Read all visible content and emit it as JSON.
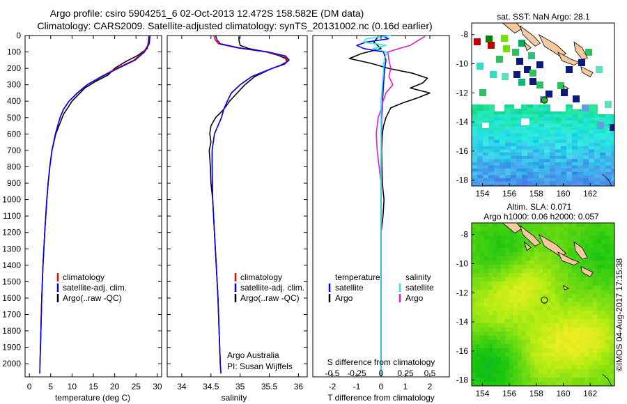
{
  "header": {
    "title_line1": "Argo profile: csiro 5904251_6 02-Oct-2013 12.472S 158.582E (DM data)",
    "title_line2": "Climatology: CARS2009. Satellite-adjusted climatology: synTS_20131002.nc (0.16d earlier)"
  },
  "credit": "Argo Australia",
  "pi_label": "PI: Susan Wijffels",
  "stamp": "©IMOS 04-Aug-2017 17:15:38",
  "colors": {
    "climatology": "#ff0000",
    "satellite": "#0000ff",
    "argo": "#000000",
    "salinity_satellite": "#33e6e6",
    "salinity_argo": "#e61ad1",
    "axis": "#000000"
  },
  "chart_data": [
    {
      "id": "temperature",
      "type": "line",
      "title": "",
      "xlabel": "temperature (deg C)",
      "ylabel": "",
      "xlim": [
        -1,
        31
      ],
      "ylim": [
        2080,
        0
      ],
      "xticks": [
        0,
        5,
        10,
        15,
        20,
        25,
        30
      ],
      "xtick_labels": [
        "0",
        "5",
        "10",
        "15",
        "20",
        "25",
        "30"
      ],
      "yticks": [
        0,
        100,
        200,
        300,
        400,
        500,
        600,
        700,
        800,
        900,
        1000,
        1100,
        1200,
        1300,
        1400,
        1500,
        1600,
        1700,
        1800,
        1900,
        2000
      ],
      "ytick_labels": [
        "0",
        "100",
        "200",
        "300",
        "400",
        "500",
        "600",
        "700",
        "800",
        "900",
        "1000",
        "1100",
        "1200",
        "1300",
        "1400",
        "1500",
        "1600",
        "1700",
        "1800",
        "1900",
        "2000"
      ],
      "legend": [
        "climatology",
        "satellite-adj. clim.",
        "Argo(..raw -QC)"
      ],
      "legend_position": "lower-center",
      "series": [
        {
          "name": "climatology",
          "color_key": "climatology",
          "depth": [
            0,
            50,
            100,
            150,
            200,
            250,
            300,
            350,
            400,
            450,
            500,
            600,
            700,
            800,
            900,
            1000,
            1200,
            1400,
            1600,
            1800,
            2000,
            2060
          ],
          "values": [
            28.2,
            28.0,
            26.8,
            24.5,
            20.5,
            16.8,
            13.5,
            11.2,
            9.3,
            8.0,
            7.2,
            6.1,
            5.3,
            4.8,
            4.4,
            4.1,
            3.6,
            3.2,
            2.9,
            2.7,
            2.5,
            2.45
          ]
        },
        {
          "name": "satellite-adj. clim.",
          "color_key": "satellite",
          "depth": [
            0,
            50,
            100,
            150,
            200,
            250,
            300,
            350,
            400,
            450,
            500,
            600,
            700,
            800,
            900,
            1000,
            1200,
            1400,
            1600,
            1800,
            2000,
            2060
          ],
          "values": [
            28.3,
            28.1,
            27.0,
            24.8,
            20.8,
            17.0,
            13.6,
            11.3,
            9.3,
            8.0,
            7.2,
            6.1,
            5.3,
            4.8,
            4.4,
            4.1,
            3.6,
            3.2,
            2.9,
            2.7,
            2.5,
            2.45
          ]
        },
        {
          "name": "Argo(..raw -QC)",
          "color_key": "argo",
          "depth": [
            5,
            40,
            80,
            120,
            160,
            200,
            240,
            280,
            320,
            360,
            400,
            440,
            480,
            520,
            600,
            700,
            800,
            900,
            1000,
            1200,
            1400,
            1600,
            1800,
            2000
          ],
          "values": [
            28.0,
            27.9,
            27.6,
            25.5,
            22.5,
            20.0,
            18.5,
            15.5,
            13.0,
            11.5,
            10.0,
            9.0,
            8.0,
            7.4,
            6.2,
            5.3,
            4.8,
            4.4,
            4.1,
            3.6,
            3.2,
            2.9,
            2.7,
            2.5
          ]
        }
      ]
    },
    {
      "id": "salinity",
      "type": "line",
      "xlabel": "salinity",
      "xlim": [
        33.75,
        36.15
      ],
      "ylim": [
        2080,
        0
      ],
      "xticks": [
        34,
        34.5,
        35,
        35.5,
        36
      ],
      "xtick_labels": [
        "34",
        "34.5",
        "35",
        "35.5",
        "36"
      ],
      "legend": [
        "climatology",
        "satellite-adj. clim.",
        "Argo(..raw -QC)"
      ],
      "legend_position": "lower-right",
      "series": [
        {
          "name": "climatology",
          "color_key": "climatology",
          "depth": [
            0,
            25,
            50,
            75,
            100,
            125,
            150,
            175,
            200,
            250,
            300,
            350,
            400,
            450,
            500,
            600,
            700,
            800,
            1000,
            1200,
            1400,
            1600,
            1800,
            2000,
            2060
          ],
          "values": [
            34.55,
            34.57,
            34.63,
            34.95,
            35.45,
            35.75,
            35.82,
            35.75,
            35.55,
            35.2,
            35.0,
            34.85,
            34.78,
            34.72,
            34.68,
            34.56,
            34.52,
            34.52,
            34.53,
            34.56,
            34.59,
            34.62,
            34.64,
            34.66,
            34.67
          ]
        },
        {
          "name": "satellite-adj. clim.",
          "color_key": "satellite",
          "depth": [
            0,
            25,
            50,
            75,
            100,
            125,
            150,
            175,
            200,
            250,
            300,
            350,
            400,
            450,
            500,
            600,
            700,
            800,
            1000,
            1200,
            1400,
            1600,
            1800,
            2000,
            2060
          ],
          "values": [
            34.58,
            34.6,
            34.66,
            34.98,
            35.48,
            35.78,
            35.84,
            35.76,
            35.55,
            35.2,
            35.0,
            34.85,
            34.78,
            34.72,
            34.68,
            34.56,
            34.52,
            34.52,
            34.53,
            34.56,
            34.59,
            34.62,
            34.64,
            34.66,
            34.67
          ]
        },
        {
          "name": "Argo(..raw -QC)",
          "color_key": "argo",
          "depth": [
            5,
            30,
            60,
            80,
            100,
            120,
            140,
            160,
            180,
            200,
            250,
            300,
            350,
            400,
            450,
            500,
            550,
            600,
            650,
            700,
            800,
            900,
            1000,
            1200,
            1400,
            1600,
            1800,
            2000
          ],
          "values": [
            34.98,
            34.98,
            35.0,
            35.15,
            35.45,
            35.65,
            35.78,
            35.8,
            35.7,
            35.55,
            35.25,
            35.08,
            34.95,
            34.82,
            34.72,
            34.58,
            34.5,
            34.48,
            34.5,
            34.47,
            34.49,
            34.5,
            34.53,
            34.56,
            34.59,
            34.62,
            34.64,
            34.66
          ]
        }
      ]
    },
    {
      "id": "difference",
      "type": "line",
      "xlabel": "T difference from climatology",
      "xlabel_top": "S difference from climatology",
      "xlim": [
        -2.8,
        2.8
      ],
      "ylim": [
        2080,
        0
      ],
      "xticks": [
        -2,
        -1,
        0,
        1,
        2
      ],
      "xtick_labels": [
        "-2",
        "-1",
        "0",
        "1",
        "2"
      ],
      "secondary_xticks": [
        -0.5,
        -0.25,
        0,
        0.25,
        0.5
      ],
      "secondary_xtick_labels": [
        "-0.5",
        "-0.25",
        "0",
        "0.25",
        "0.5"
      ],
      "secondary_scale": 4,
      "legend_left_title": "temperature",
      "legend_right_title": "salinity",
      "legend_left": [
        "satellite",
        "Argo"
      ],
      "legend_right": [
        "satellite",
        "Argo"
      ],
      "legend_position": "middle",
      "series": [
        {
          "name": "T satellite",
          "color_key": "satellite",
          "depth": [
            0,
            20,
            40,
            60,
            80,
            100,
            150,
            200,
            300,
            500,
            800,
            2060
          ],
          "values": [
            0.05,
            0.3,
            -0.6,
            -1.0,
            -0.7,
            0.1,
            0.2,
            0.15,
            0.1,
            0.02,
            0.0,
            0.0
          ]
        },
        {
          "name": "T Argo",
          "color_key": "argo",
          "depth": [
            5,
            40,
            80,
            110,
            140,
            170,
            200,
            230,
            260,
            290,
            320,
            350,
            380,
            410,
            440,
            470,
            500,
            550,
            600,
            700,
            900,
            1000,
            1100,
            1200,
            1400,
            1600,
            1800,
            2000
          ],
          "values": [
            -0.1,
            -0.3,
            0.0,
            -0.8,
            -1.3,
            -0.4,
            0.3,
            1.3,
            1.9,
            1.7,
            1.2,
            2.0,
            1.5,
            0.9,
            0.4,
            0.3,
            0.2,
            0.1,
            0.05,
            0.02,
            0.05,
            0.12,
            0.08,
            0.0,
            0.0,
            0.0,
            0.0,
            0.0
          ]
        },
        {
          "name": "S satellite",
          "color_key": "salinity_satellite",
          "depth": [
            0,
            20,
            40,
            60,
            80,
            100,
            150,
            250,
            400,
            600,
            900,
            2060
          ],
          "values": [
            0.1,
            -0.15,
            -0.18,
            0.05,
            -0.08,
            0.06,
            0.03,
            0.02,
            0.0,
            0.0,
            0.0,
            0.0
          ]
        },
        {
          "name": "S Argo",
          "color_key": "salinity_argo",
          "depth": [
            5,
            30,
            60,
            80,
            100,
            150,
            200,
            250,
            300,
            350,
            400,
            450,
            500,
            600,
            700,
            800,
            900
          ],
          "values": [
            0.45,
            0.38,
            0.3,
            0.18,
            0.07,
            0.08,
            0.1,
            0.08,
            0.12,
            0.05,
            0.02,
            0.0,
            -0.03,
            -0.05,
            -0.04,
            -0.02,
            0.0
          ]
        }
      ]
    },
    {
      "id": "sst-map",
      "type": "heatmap",
      "title": "sat. SST: NaN Argo: 28.1",
      "xlim": [
        153.2,
        163.8
      ],
      "ylim": [
        -18.4,
        -7.2
      ],
      "xticks": [
        154,
        156,
        158,
        160,
        162
      ],
      "xtick_labels": [
        "154",
        "156",
        "158",
        "160",
        "162"
      ],
      "yticks": [
        -8,
        -10,
        -12,
        -14,
        -16,
        -18
      ],
      "ytick_labels": [
        "-8",
        "-10",
        "-12",
        "-14",
        "-16",
        "-18"
      ],
      "marker": {
        "lon": 158.6,
        "lat": -12.5,
        "color": "#22bb22"
      }
    },
    {
      "id": "sla-map",
      "type": "heatmap",
      "title": "Altim. SLA: 0.071",
      "subtitle": "Argo h1000: 0.06 h2000: 0.057",
      "xlim": [
        153.2,
        163.8
      ],
      "ylim": [
        -18.4,
        -7.2
      ],
      "xticks": [
        154,
        156,
        158,
        160,
        162
      ],
      "xtick_labels": [
        "154",
        "156",
        "158",
        "160",
        "162"
      ],
      "yticks": [
        -8,
        -10,
        -12,
        -14,
        -16,
        -18
      ],
      "ytick_labels": [
        "-8",
        "-10",
        "-12",
        "-14",
        "-16",
        "-18"
      ],
      "marker": {
        "lon": 158.6,
        "lat": -12.5,
        "color": "none"
      }
    }
  ]
}
